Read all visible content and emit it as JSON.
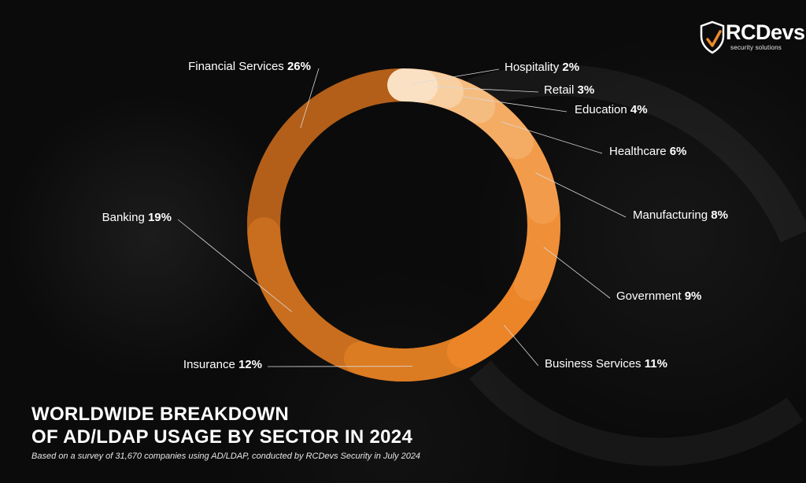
{
  "chart_data": {
    "type": "pie",
    "style": "donut",
    "title_lines": [
      "WORLDWIDE BREAKDOWN",
      "OF AD/LDAP USAGE BY SECTOR IN 2024"
    ],
    "subtitle": "Based on a survey of 31,670 companies using AD/LDAP, conducted by RCDevs Security in July 2024",
    "unit": "%",
    "slices": [
      {
        "name": "Hospitality",
        "value": 2,
        "color": "#fbe1c4"
      },
      {
        "name": "Retail",
        "value": 3,
        "color": "#f8cfa0"
      },
      {
        "name": "Education",
        "value": 4,
        "color": "#f5bc80"
      },
      {
        "name": "Healthcare",
        "value": 6,
        "color": "#f4ab63"
      },
      {
        "name": "Manufacturing",
        "value": 8,
        "color": "#f29c4b"
      },
      {
        "name": "Government",
        "value": 9,
        "color": "#ef8f38"
      },
      {
        "name": "Business Services",
        "value": 11,
        "color": "#ec8528"
      },
      {
        "name": "Insurance",
        "value": 12,
        "color": "#dc7c22"
      },
      {
        "name": "Banking",
        "value": 19,
        "color": "#c96e1e"
      },
      {
        "name": "Financial Services",
        "value": 26,
        "color": "#b35f19"
      }
    ]
  },
  "brand": {
    "name": "RCDevs",
    "tagline": "security solutions",
    "accent": "#ef8a2b"
  }
}
